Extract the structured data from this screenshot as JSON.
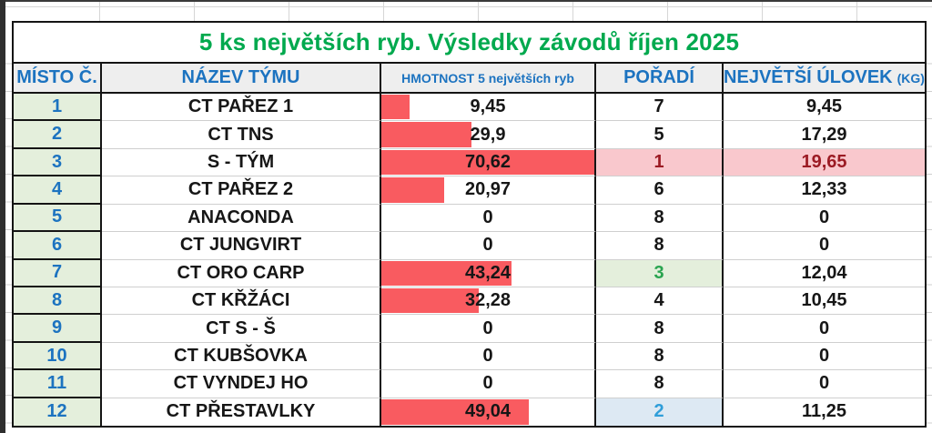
{
  "title": {
    "text": "5 ks největších ryb. Výsledky závodů říjen 2025"
  },
  "table": {
    "headers": [
      {
        "id": "place",
        "label": "MÍSTO Č."
      },
      {
        "id": "team",
        "label": "NÁZEV TÝMU"
      },
      {
        "id": "weight",
        "label": "HMOTNOST 5 největších ryb"
      },
      {
        "id": "rank",
        "label": "POŘADÍ"
      },
      {
        "id": "biggest",
        "label": "NEJVĚTŠÍ ÚLOVEK",
        "suffix": "(KG)"
      }
    ],
    "bar_max": 70.62,
    "rows": [
      {
        "place": "1",
        "team": "CT PAŘEZ 1",
        "weight": "9,45",
        "bar_pct": 13.4,
        "rank": "7",
        "biggest": "9,45"
      },
      {
        "place": "2",
        "team": "CT TNS",
        "weight": "29,9",
        "bar_pct": 42.3,
        "rank": "5",
        "biggest": "17,29"
      },
      {
        "place": "3",
        "team": "S - TÝM",
        "weight": "70,62",
        "bar_pct": 100,
        "rank": "1",
        "biggest": "19,65",
        "rank_style": "bad",
        "biggest_style": "bad"
      },
      {
        "place": "4",
        "team": "CT PAŘEZ 2",
        "weight": "20,97",
        "bar_pct": 29.7,
        "rank": "6",
        "biggest": "12,33"
      },
      {
        "place": "5",
        "team": "ANACONDA",
        "weight": "0",
        "bar_pct": 0,
        "rank": "8",
        "biggest": "0"
      },
      {
        "place": "6",
        "team": "CT JUNGVIRT",
        "weight": "0",
        "bar_pct": 0,
        "rank": "8",
        "biggest": "0"
      },
      {
        "place": "7",
        "team": "CT ORO CARP",
        "weight": "43,24",
        "bar_pct": 61.2,
        "rank": "3",
        "biggest": "12,04",
        "rank_style": "good"
      },
      {
        "place": "8",
        "team": "CT KŘŽÁCI",
        "weight": "32,28",
        "bar_pct": 45.7,
        "rank": "4",
        "biggest": "10,45"
      },
      {
        "place": "9",
        "team": "CT S - Š",
        "weight": "0",
        "bar_pct": 0,
        "rank": "8",
        "biggest": "0"
      },
      {
        "place": "10",
        "team": "CT KUBŠOVKA",
        "weight": "0",
        "bar_pct": 0,
        "rank": "8",
        "biggest": "0"
      },
      {
        "place": "11",
        "team": "CT VYNDEJ HO",
        "weight": "0",
        "bar_pct": 0,
        "rank": "8",
        "biggest": "0"
      },
      {
        "place": "12",
        "team": "CT PŘESTAVLKY",
        "weight": "49,04",
        "bar_pct": 69.4,
        "rank": "2",
        "biggest": "11,25",
        "rank_style": "second"
      }
    ]
  },
  "colors": {
    "title_green": "#00a94e",
    "header_blue": "#1c73c0",
    "bar_red": "#f95b60",
    "bad_bg": "#f9c8cd",
    "bad_text": "#9c1b24",
    "good_bg": "#e4efdc",
    "good_text": "#2aa450",
    "second_bg": "#dde9f3",
    "second_text": "#2f9ed9",
    "place_col_bg": "#e4efdc",
    "header_row_bg": "#eeeeee"
  }
}
